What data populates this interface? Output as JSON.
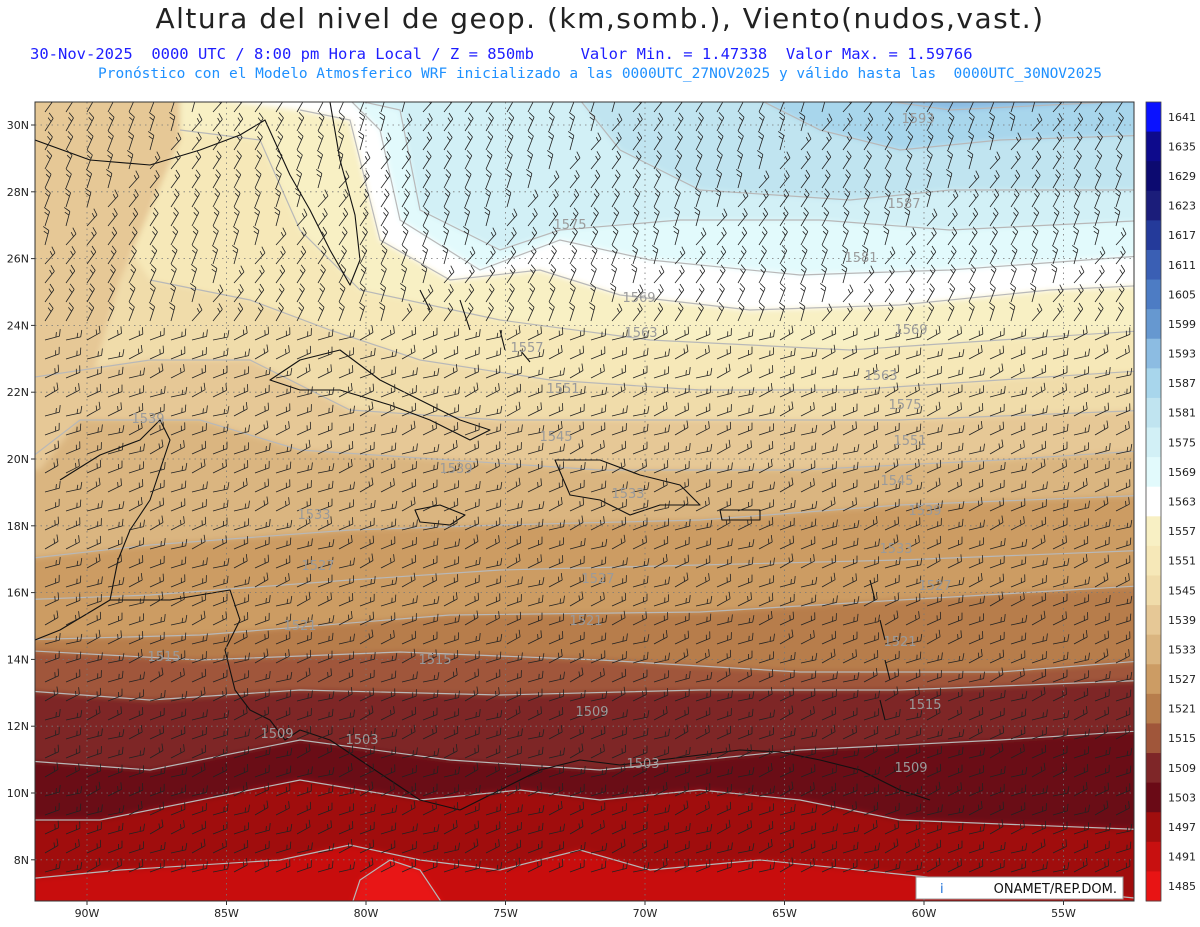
{
  "title": "Altura del nivel de geop. (km,somb.), Viento(nudos,vast.)",
  "subtitle": {
    "datetime": "30-Nov-2025  0000 UTC / 8:00 pm Hora Local / Z = 850mb",
    "min": "Valor Min. = 1.47338",
    "max": "Valor Max. = 1.59766",
    "model_line": "Pronóstico con el Modelo Atmosferico WRF inicializado a las 0000UTC_27NOV2025 y válido hasta las  0000UTC_30NOV2025"
  },
  "axes": {
    "lat_labels": [
      "30N",
      "28N",
      "26N",
      "24N",
      "22N",
      "20N",
      "18N",
      "16N",
      "14N",
      "12N",
      "10N",
      "8N"
    ],
    "lon_labels": [
      "90W",
      "85W",
      "80W",
      "75W",
      "70W",
      "65W",
      "60W",
      "55W"
    ]
  },
  "colorbar": [
    {
      "value": "1641",
      "color": "#0a12ff"
    },
    {
      "value": "1635",
      "color": "#0d0a8c"
    },
    {
      "value": "1629",
      "color": "#0c0a70"
    },
    {
      "value": "1623",
      "color": "#1b1d7a"
    },
    {
      "value": "1617",
      "color": "#243a9a"
    },
    {
      "value": "1611",
      "color": "#3a5fb4"
    },
    {
      "value": "1605",
      "color": "#4d7cc4"
    },
    {
      "value": "1599",
      "color": "#6698d0"
    },
    {
      "value": "1593",
      "color": "#8cbce2"
    },
    {
      "value": "1587",
      "color": "#a8d6ec"
    },
    {
      "value": "1581",
      "color": "#c0e4f0"
    },
    {
      "value": "1575",
      "color": "#d2f0f6"
    },
    {
      "value": "1569",
      "color": "#e2fafc"
    },
    {
      "value": "1563",
      "color": "#ffffff"
    },
    {
      "value": "1557",
      "color": "#f8f0c4"
    },
    {
      "value": "1551",
      "color": "#f6e8b8"
    },
    {
      "value": "1545",
      "color": "#f0dcaa"
    },
    {
      "value": "1539",
      "color": "#e6c896"
    },
    {
      "value": "1533",
      "color": "#dab580"
    },
    {
      "value": "1527",
      "color": "#cc9c64"
    },
    {
      "value": "1521",
      "color": "#b77d4c"
    },
    {
      "value": "1515",
      "color": "#a0563a"
    },
    {
      "value": "1509",
      "color": "#7e2628"
    },
    {
      "value": "1503",
      "color": "#6a0a16"
    },
    {
      "value": "1497",
      "color": "#a00e0e"
    },
    {
      "value": "1491",
      "color": "#c81010"
    },
    {
      "value": "1485",
      "color": "#e81414"
    }
  ],
  "contour_labels": [
    "1593",
    "1587",
    "1581",
    "1575",
    "1569",
    "1563",
    "1557",
    "1551",
    "1545",
    "1539",
    "1533",
    "1527",
    "1521",
    "1515",
    "1509",
    "1503"
  ],
  "credit": "ONAMET/REP.DOM.",
  "credit_logo": "i"
}
